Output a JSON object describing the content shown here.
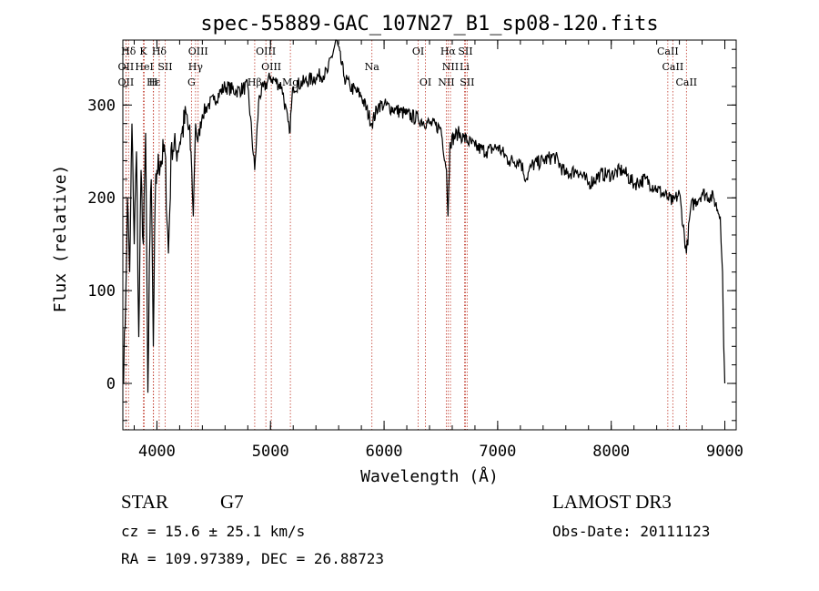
{
  "chart_data": {
    "type": "line",
    "title": "spec-55889-GAC_107N27_B1_sp08-120.fits",
    "xlabel": "Wavelength (Å)",
    "ylabel": "Flux (relative)",
    "xlim": [
      3700,
      9100
    ],
    "ylim": [
      -50,
      370
    ],
    "x_ticks": [
      4000,
      5000,
      6000,
      7000,
      8000,
      9000
    ],
    "y_ticks": [
      0,
      100,
      200,
      300
    ],
    "grid": false,
    "series": [
      {
        "name": "flux",
        "x": [
          3700,
          3720,
          3740,
          3760,
          3780,
          3800,
          3820,
          3840,
          3860,
          3880,
          3900,
          3920,
          3933,
          3950,
          3968,
          3985,
          4000,
          4030,
          4070,
          4101,
          4130,
          4170,
          4220,
          4260,
          4300,
          4320,
          4340,
          4360,
          4400,
          4450,
          4500,
          4600,
          4700,
          4800,
          4861,
          4900,
          5000,
          5100,
          5167,
          5200,
          5300,
          5400,
          5500,
          5580,
          5650,
          5700,
          5800,
          5893,
          5950,
          6000,
          6100,
          6200,
          6300,
          6400,
          6500,
          6550,
          6563,
          6580,
          6650,
          6700,
          6800,
          6900,
          7000,
          7100,
          7200,
          7250,
          7300,
          7400,
          7500,
          7600,
          7700,
          7800,
          7900,
          8000,
          8100,
          8200,
          8300,
          8400,
          8498,
          8542,
          8600,
          8662,
          8700,
          8800,
          8900,
          8960,
          8980,
          8990,
          9000
        ],
        "values": [
          0,
          60,
          200,
          120,
          280,
          150,
          250,
          50,
          230,
          150,
          270,
          -10,
          130,
          220,
          40,
          200,
          230,
          240,
          250,
          140,
          260,
          250,
          270,
          290,
          250,
          180,
          280,
          260,
          290,
          300,
          305,
          320,
          315,
          320,
          230,
          310,
          330,
          320,
          270,
          320,
          325,
          330,
          335,
          370,
          330,
          320,
          310,
          280,
          300,
          300,
          295,
          290,
          285,
          280,
          275,
          230,
          180,
          260,
          270,
          265,
          255,
          250,
          255,
          240,
          240,
          220,
          235,
          240,
          245,
          225,
          230,
          215,
          225,
          225,
          230,
          215,
          220,
          210,
          200,
          195,
          205,
          140,
          190,
          205,
          200,
          180,
          120,
          40,
          0
        ]
      }
    ],
    "lines": [
      {
        "name": "Hδ",
        "x": 3750,
        "row": 0
      },
      {
        "name": "K",
        "x": 3880,
        "row": 0
      },
      {
        "name": "Hδ",
        "x": 4020,
        "row": 0
      },
      {
        "name": "OIII",
        "x": 4363,
        "row": 0
      },
      {
        "name": "OIII",
        "x": 4959,
        "row": 0
      },
      {
        "name": "OI",
        "x": 6300,
        "row": 0
      },
      {
        "name": "Hα",
        "x": 6563,
        "row": 0
      },
      {
        "name": "SII",
        "x": 6716,
        "row": 0
      },
      {
        "name": "CaII",
        "x": 8498,
        "row": 0
      },
      {
        "name": "OII",
        "x": 3727,
        "row": 1
      },
      {
        "name": "HeI",
        "x": 3889,
        "row": 1
      },
      {
        "name": "SII",
        "x": 4072,
        "row": 1
      },
      {
        "name": "Hγ",
        "x": 4340,
        "row": 1
      },
      {
        "name": "OIII",
        "x": 5007,
        "row": 1
      },
      {
        "name": "Na",
        "x": 5893,
        "row": 1
      },
      {
        "name": "NII",
        "x": 6584,
        "row": 1
      },
      {
        "name": "Li",
        "x": 6708,
        "row": 1
      },
      {
        "name": "CaII",
        "x": 8542,
        "row": 1
      },
      {
        "name": "OII",
        "x": 3727,
        "row": 2
      },
      {
        "name": "Hε",
        "x": 3970,
        "row": 2
      },
      {
        "name": "H",
        "x": 3968,
        "row": 2
      },
      {
        "name": "G",
        "x": 4304,
        "row": 2
      },
      {
        "name": "Hβ",
        "x": 4861,
        "row": 2
      },
      {
        "name": "Mg",
        "x": 5175,
        "row": 2
      },
      {
        "name": "OI",
        "x": 6364,
        "row": 2
      },
      {
        "name": "NII",
        "x": 6548,
        "row": 2
      },
      {
        "name": "SII",
        "x": 6731,
        "row": 2
      },
      {
        "name": "CaII",
        "x": 8662,
        "row": 2
      }
    ]
  },
  "footer": {
    "object_class": "STAR",
    "subclass": "G7",
    "survey": "LAMOST DR3",
    "cz": "cz = 15.6 ± 25.1 km/s",
    "obs_date": "Obs-Date: 20111123",
    "coords": "RA = 109.97389, DEC =  26.88723"
  }
}
